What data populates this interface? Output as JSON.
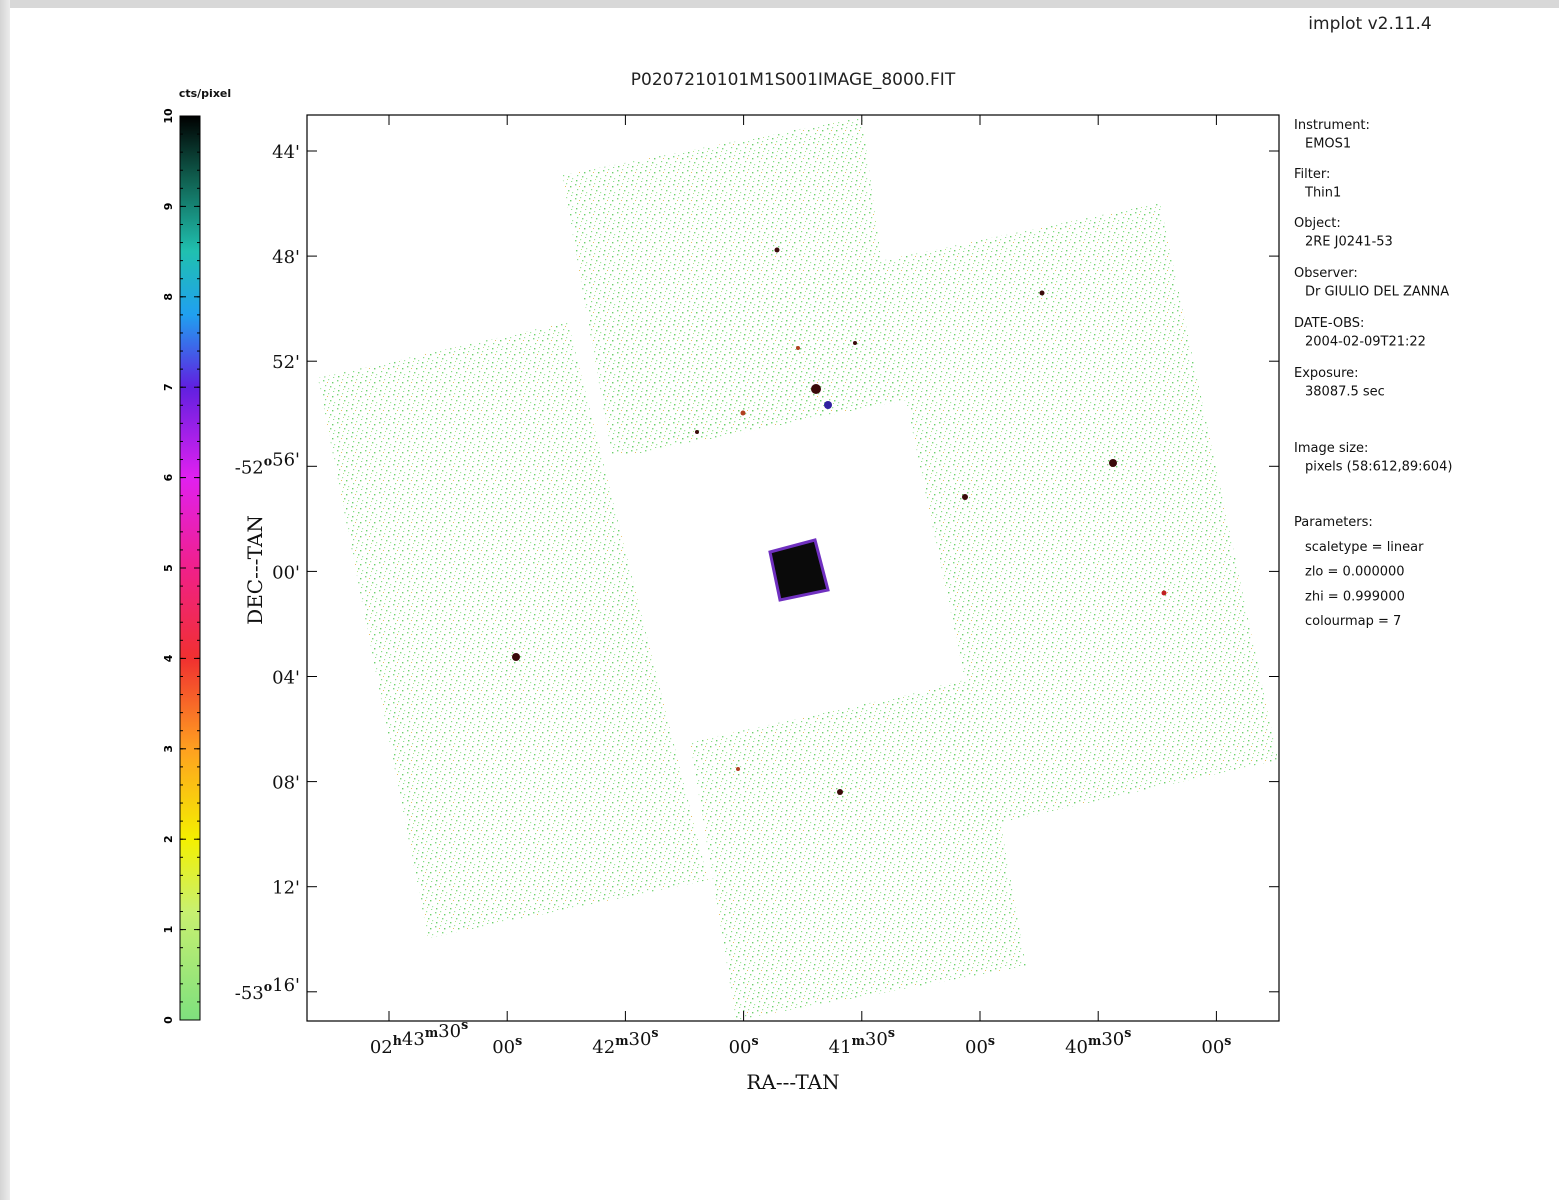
{
  "header": {
    "version": "implot v2.11.4"
  },
  "plot": {
    "title": "P0207210101M1S001IMAGE_8000.FIT",
    "x_label": "RA---TAN",
    "y_label": "DEC---TAN",
    "x_ticks": [
      [
        {
          "text": "02",
          "sup": "h"
        },
        {
          "text": "43",
          "sup": "m"
        },
        {
          "text": "30",
          "sup": "s"
        }
      ],
      [
        {
          "text": "00",
          "sup": "s"
        }
      ],
      [
        {
          "text": "42",
          "sup": "m"
        },
        {
          "text": "30",
          "sup": "s"
        }
      ],
      [
        {
          "text": "00",
          "sup": "s"
        }
      ],
      [
        {
          "text": "41",
          "sup": "m"
        },
        {
          "text": "30",
          "sup": "s"
        }
      ],
      [
        {
          "text": "00",
          "sup": "s"
        }
      ],
      [
        {
          "text": "40",
          "sup": "m"
        },
        {
          "text": "30",
          "sup": "s"
        }
      ],
      [
        {
          "text": "00",
          "sup": "s"
        }
      ]
    ],
    "y_ticks": [
      [
        {
          "text": "44'"
        }
      ],
      [
        {
          "text": "48'"
        }
      ],
      [
        {
          "text": "52'"
        }
      ],
      [
        {
          "text": "-52",
          "sup": "o"
        },
        {
          "text": "56'"
        }
      ],
      [
        {
          "text": "00'"
        }
      ],
      [
        {
          "text": "04'"
        }
      ],
      [
        {
          "text": "08'"
        }
      ],
      [
        {
          "text": "12'"
        }
      ],
      [
        {
          "text": "-53",
          "sup": "o"
        },
        {
          "text": "16'"
        }
      ]
    ]
  },
  "colorbar": {
    "label": "cts/pixel",
    "lim": [
      0,
      10
    ],
    "ticks": [
      0,
      1,
      2,
      3,
      4,
      5,
      6,
      7,
      8,
      9,
      10
    ]
  },
  "info": [
    {
      "label": "Instrument:",
      "lines": [
        "EMOS1"
      ]
    },
    {
      "label": "Filter:",
      "lines": [
        "Thin1"
      ]
    },
    {
      "label": "Object:",
      "lines": [
        "2RE J0241-53"
      ]
    },
    {
      "label": "Observer:",
      "lines": [
        "Dr GIULIO DEL ZANNA"
      ]
    },
    {
      "label": "DATE-OBS:",
      "lines": [
        "2004-02-09T21:22"
      ]
    },
    {
      "label": "Exposure:",
      "lines": [
        "38087.5 sec"
      ]
    },
    {
      "label": "Image size:",
      "lines": [
        "pixels (58:612,89:604)"
      ]
    },
    {
      "label": "Parameters:",
      "lines": [
        "scaletype = linear",
        "zlo = 0.000000",
        "zhi = 0.999000",
        "colourmap =    7"
      ]
    }
  ]
}
